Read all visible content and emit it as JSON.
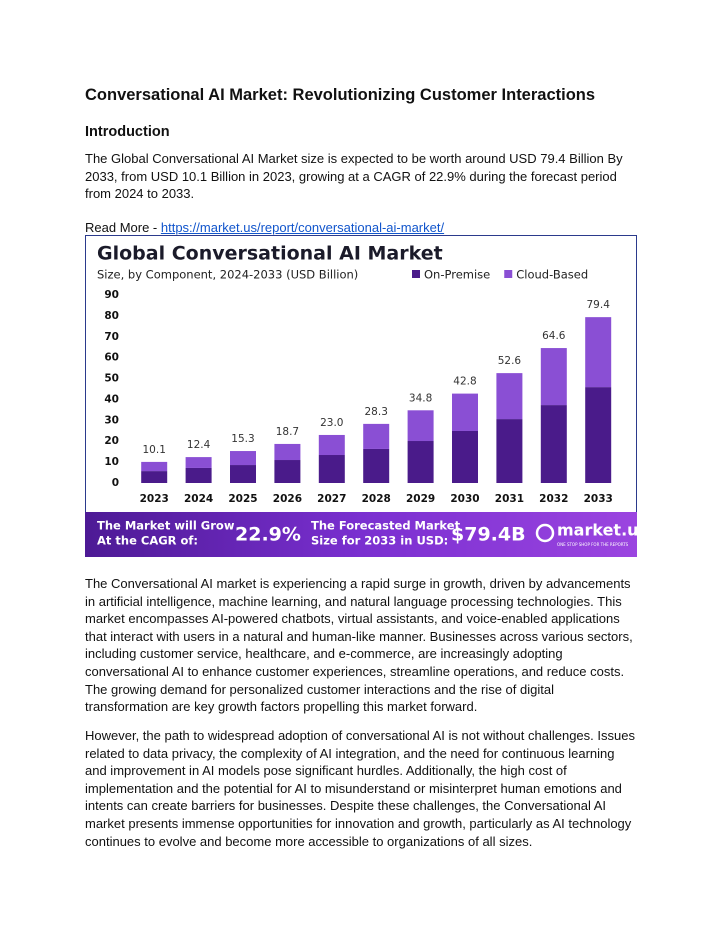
{
  "document": {
    "title": "Conversational AI Market: Revolutionizing Customer Interactions",
    "intro_heading": "Introduction",
    "intro_paragraph": "The Global Conversational AI Market size is expected to be worth around USD 79.4 Billion By 2033, from USD 10.1 Billion in 2023, growing at a CAGR of 22.9% during the forecast period from 2024 to 2033.",
    "read_more_label": "Read More - ",
    "read_more_link": "https://market.us/report/conversational-ai-market/",
    "paragraphs": [
      "The Conversational AI market is experiencing a rapid surge in growth, driven by advancements in artificial intelligence, machine learning, and natural language processing technologies. This market encompasses AI-powered chatbots, virtual assistants, and voice-enabled applications that interact with users in a natural and human-like manner. Businesses across various sectors, including customer service, healthcare, and e-commerce, are increasingly adopting conversational AI to enhance customer experiences, streamline operations, and reduce costs. The growing demand for personalized customer interactions and the rise of digital transformation are key growth factors propelling this market forward.",
      "However, the path to widespread adoption of conversational AI is not without challenges. Issues related to data privacy, the complexity of AI integration, and the need for continuous learning and improvement in AI models pose significant hurdles. Additionally, the high cost of implementation and the potential for AI to misunderstand or misinterpret human emotions and intents can create barriers for businesses. Despite these challenges, the Conversational AI market presents immense opportunities for innovation and growth, particularly as AI technology continues to evolve and become more accessible to organizations of all sizes."
    ]
  },
  "chart_data": {
    "type": "stacked_bar",
    "title": "Global Conversational AI Market",
    "subtitle": "Size, by Component, 2024-2033 (USD Billion)",
    "categories": [
      "2023",
      "2024",
      "2025",
      "2026",
      "2027",
      "2028",
      "2029",
      "2030",
      "2031",
      "2032",
      "2033"
    ],
    "series": [
      {
        "name": "On-Premise",
        "color": "#4a1b8a",
        "values": [
          5.7,
          7.2,
          8.6,
          11.0,
          13.4,
          16.3,
          20.1,
          24.9,
          30.6,
          37.3,
          45.9
        ]
      },
      {
        "name": "Cloud-Based",
        "color": "#8a4fd4",
        "values": [
          4.4,
          5.2,
          6.7,
          7.7,
          9.6,
          12.0,
          14.7,
          17.9,
          22.0,
          27.3,
          33.5
        ]
      }
    ],
    "totals": [
      10.1,
      12.4,
      15.3,
      18.7,
      {
        "value": 23.0,
        "label": "23.0"
      },
      28.3,
      34.8,
      42.8,
      52.6,
      64.6,
      79.4
    ],
    "ylim": [
      0,
      90
    ],
    "yticks": [
      0,
      10,
      20,
      30,
      40,
      50,
      60,
      70,
      80,
      90
    ],
    "grid": false,
    "legend": "top-right",
    "banner": {
      "cagr_caption": [
        "The Market will Grow",
        "At the CAGR of:"
      ],
      "cagr_value": "22.9%",
      "forecast_caption": [
        "The Forecasted Market",
        "Size for 2033 in USD:"
      ],
      "forecast_value": "$79.4B",
      "brand": "market.us",
      "brand_tagline": "ONE STOP SHOP FOR THE REPORTS"
    }
  }
}
